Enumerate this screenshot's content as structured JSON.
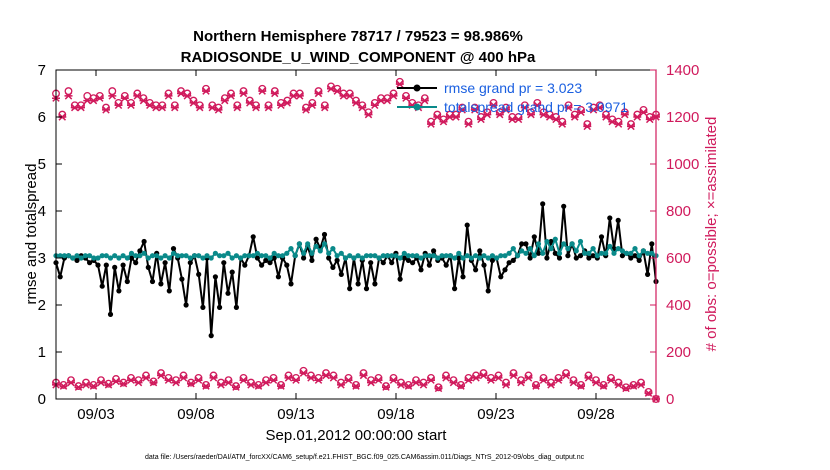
{
  "chart_data": {
    "type": "line",
    "title": "Northern Hemisphere 78717 / 79523 = 98.986%",
    "subtitle": "RADIOSONDE_U_WIND_COMPONENT @ 400 hPa",
    "xlabel": "Sep.01,2012 00:00:00 start",
    "ylabel_left": "rmse and totalspread",
    "ylabel_right": "# of obs: o=possible; ×=assimilated",
    "x_tick_labels": [
      "09/03",
      "09/08",
      "09/13",
      "09/18",
      "09/23",
      "09/28"
    ],
    "x_tick_days": [
      3,
      8,
      13,
      18,
      23,
      28
    ],
    "xlim": [
      1.0,
      31.0
    ],
    "ylim_left": [
      0,
      7
    ],
    "ylim_right": [
      0,
      1400
    ],
    "y_ticks_left": [
      0,
      1,
      2,
      3,
      4,
      5,
      6,
      7
    ],
    "y_ticks_right": [
      0,
      200,
      400,
      600,
      800,
      1000,
      1200,
      1400
    ],
    "colors": {
      "rmse": "#000000",
      "spread": "#0a8a8a",
      "obs": "#d01a5c",
      "legend_text": "#1a5fe0"
    },
    "legend": [
      {
        "label": "rmse grand pr = 3.023"
      },
      {
        "label": "totalspread grand pr = 3.0971"
      }
    ],
    "series": [
      {
        "name": "rmse grand pr = 3.023",
        "axis": "left",
        "values": [
          2.9,
          2.6,
          3.0,
          3.05,
          3.0,
          2.95,
          3.05,
          3.0,
          2.9,
          2.95,
          2.85,
          2.4,
          2.85,
          1.8,
          2.8,
          2.3,
          2.85,
          2.5,
          3.0,
          2.9,
          3.15,
          3.35,
          2.8,
          2.5,
          3.1,
          2.45,
          2.9,
          2.3,
          3.2,
          3.0,
          2.55,
          2.0,
          2.9,
          3.05,
          2.65,
          1.95,
          3.0,
          1.35,
          2.6,
          1.95,
          2.9,
          2.25,
          2.7,
          1.95,
          3.0,
          2.85,
          3.05,
          3.45,
          3.0,
          2.85,
          2.95,
          2.9,
          3.0,
          2.6,
          3.0,
          2.85,
          2.45,
          3.05,
          3.3,
          3.0,
          3.25,
          2.95,
          3.4,
          3.2,
          3.5,
          3.0,
          2.8,
          2.95,
          2.65,
          3.0,
          2.35,
          3.0,
          2.45,
          2.95,
          2.35,
          2.9,
          2.45,
          3.0,
          2.9,
          3.05,
          2.9,
          3.1,
          2.55,
          3.0,
          2.95,
          2.9,
          3.0,
          2.75,
          3.1,
          2.85,
          3.15,
          2.95,
          3.0,
          2.85,
          3.05,
          2.35,
          3.0,
          2.6,
          3.7,
          2.95,
          2.75,
          3.15,
          2.85,
          2.3,
          2.95,
          3.0,
          2.6,
          2.75,
          2.9,
          2.95,
          3.05,
          3.3,
          3.3,
          3.0,
          3.45,
          3.1,
          4.15,
          3.0,
          3.35,
          3.1,
          3.0,
          4.1,
          3.05,
          3.3,
          3.0,
          3.05,
          3.15,
          3.0,
          3.05,
          3.0,
          3.45,
          3.05,
          3.85,
          3.2,
          3.8,
          3.05,
          3.1,
          3.0,
          3.05,
          2.95,
          3.15,
          2.65,
          3.3,
          2.5
        ]
      },
      {
        "name": "totalspread grand pr = 3.0971",
        "axis": "left",
        "values": [
          3.05,
          3.05,
          3.05,
          3.05,
          3.0,
          3.05,
          3.0,
          3.05,
          3.05,
          3.0,
          3.0,
          3.05,
          3.05,
          3.0,
          3.05,
          3.0,
          3.05,
          3.0,
          3.1,
          3.05,
          3.05,
          3.1,
          3.0,
          3.05,
          3.05,
          3.0,
          3.05,
          3.0,
          3.1,
          3.05,
          3.05,
          3.05,
          3.0,
          3.05,
          3.05,
          3.0,
          3.05,
          3.0,
          3.1,
          3.05,
          3.05,
          3.1,
          3.0,
          3.05,
          3.0,
          3.05,
          3.05,
          3.05,
          3.1,
          3.05,
          3.05,
          3.0,
          3.1,
          3.05,
          3.05,
          3.1,
          3.2,
          3.05,
          3.3,
          3.1,
          3.3,
          3.1,
          3.25,
          3.15,
          3.3,
          3.1,
          3.2,
          3.05,
          3.1,
          3.0,
          3.05,
          3.0,
          3.05,
          3.0,
          3.05,
          3.05,
          3.05,
          3.0,
          3.05,
          3.05,
          3.05,
          3.05,
          3.0,
          3.1,
          3.05,
          3.05,
          3.05,
          3.0,
          3.05,
          3.05,
          3.05,
          3.0,
          3.05,
          3.05,
          3.05,
          3.0,
          3.1,
          3.0,
          3.05,
          3.0,
          3.05,
          3.0,
          3.05,
          3.0,
          3.05,
          3.0,
          3.05,
          3.05,
          3.1,
          3.2,
          3.05,
          3.15,
          3.1,
          3.2,
          3.05,
          3.3,
          3.1,
          3.35,
          3.2,
          3.4,
          3.1,
          3.3,
          3.2,
          3.3,
          3.15,
          3.35,
          3.1,
          3.1,
          3.2,
          3.05,
          3.1,
          3.1,
          3.25,
          3.1,
          3.2,
          3.15,
          3.1,
          3.1,
          3.2,
          3.05,
          3.15,
          3.1,
          3.1,
          3.05
        ]
      },
      {
        "name": "possible",
        "axis": "right",
        "values": [
          1300,
          1210,
          1310,
          1250,
          1250,
          1290,
          1280,
          1290,
          1240,
          1310,
          1260,
          1290,
          1260,
          1300,
          1280,
          1260,
          1250,
          1250,
          1300,
          1250,
          1310,
          1300,
          1270,
          1250,
          1320,
          1250,
          1240,
          1280,
          1300,
          1250,
          1310,
          1270,
          1250,
          1320,
          1250,
          1310,
          1260,
          1270,
          1300,
          1300,
          1240,
          1260,
          1310,
          1250,
          1330,
          1320,
          1300,
          1300,
          1270,
          1250,
          1220,
          1260,
          1280,
          1280,
          1300,
          1350,
          1290,
          1260,
          1250,
          1280,
          1180,
          1210,
          1190,
          1210,
          1210,
          1240,
          1180,
          1240,
          1200,
          1220,
          1260,
          1220,
          1240,
          1200,
          1200,
          1250,
          1220,
          1260,
          1220,
          1210,
          1200,
          1180,
          1250,
          1210,
          1230,
          1170,
          1240,
          1250,
          1210,
          1190,
          1180,
          1220,
          1170,
          1210,
          1230,
          1200,
          1210
        ]
      },
      {
        "name": "assimilated",
        "axis": "right",
        "values": [
          1280,
          1200,
          1290,
          1240,
          1240,
          1270,
          1270,
          1280,
          1230,
          1290,
          1250,
          1280,
          1250,
          1290,
          1270,
          1250,
          1240,
          1240,
          1290,
          1240,
          1300,
          1290,
          1260,
          1240,
          1310,
          1240,
          1230,
          1270,
          1290,
          1240,
          1300,
          1260,
          1240,
          1310,
          1240,
          1300,
          1250,
          1260,
          1290,
          1290,
          1230,
          1250,
          1300,
          1240,
          1320,
          1310,
          1290,
          1290,
          1260,
          1240,
          1210,
          1250,
          1270,
          1270,
          1290,
          1340,
          1280,
          1250,
          1240,
          1270,
          1170,
          1200,
          1180,
          1200,
          1200,
          1230,
          1170,
          1230,
          1190,
          1210,
          1250,
          1210,
          1230,
          1190,
          1190,
          1240,
          1210,
          1250,
          1210,
          1200,
          1190,
          1170,
          1240,
          1200,
          1220,
          1160,
          1230,
          1240,
          1200,
          1180,
          1170,
          1210,
          1160,
          1200,
          1220,
          1190,
          1200
        ]
      },
      {
        "name": "possible_low",
        "axis": "right",
        "values": [
          70,
          60,
          80,
          55,
          70,
          60,
          80,
          65,
          85,
          70,
          90,
          80,
          100,
          75,
          110,
          90,
          80,
          100,
          70,
          90,
          60,
          100,
          70,
          80,
          55,
          90,
          70,
          60,
          80,
          90,
          60,
          100,
          90,
          120,
          100,
          90,
          110,
          100,
          70,
          90,
          60,
          110,
          80,
          90,
          55,
          90,
          70,
          60,
          80,
          70,
          90,
          50,
          100,
          80,
          60,
          90,
          100,
          110,
          90,
          100,
          70,
          110,
          80,
          100,
          60,
          90,
          70,
          90,
          110,
          80,
          60,
          100,
          80,
          60,
          90,
          70,
          50,
          60,
          70,
          30,
          0
        ]
      },
      {
        "name": "assimilated_low",
        "axis": "right",
        "values": [
          60,
          55,
          70,
          50,
          60,
          55,
          70,
          60,
          75,
          65,
          80,
          70,
          90,
          70,
          100,
          80,
          70,
          90,
          65,
          80,
          55,
          90,
          60,
          70,
          50,
          80,
          60,
          55,
          70,
          80,
          55,
          90,
          80,
          110,
          90,
          80,
          100,
          90,
          60,
          80,
          55,
          100,
          70,
          80,
          50,
          80,
          60,
          55,
          70,
          60,
          80,
          45,
          90,
          70,
          55,
          80,
          90,
          100,
          80,
          90,
          60,
          100,
          70,
          90,
          55,
          80,
          60,
          80,
          100,
          70,
          55,
          90,
          70,
          55,
          80,
          60,
          45,
          55,
          60,
          25,
          0
        ]
      }
    ]
  },
  "footer": "data file: /Users/raeder/DAI/ATM_forcXX/CAM6_setup/f.e21.FHIST_BGC.f09_025.CAM6assim.011/Diags_NTrS_2012-09/obs_diag_output.nc"
}
